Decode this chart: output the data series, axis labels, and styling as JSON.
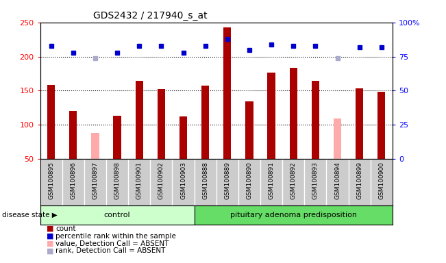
{
  "title": "GDS2432 / 217940_s_at",
  "samples": [
    "GSM100895",
    "GSM100896",
    "GSM100897",
    "GSM100898",
    "GSM100901",
    "GSM100902",
    "GSM100903",
    "GSM100888",
    "GSM100889",
    "GSM100890",
    "GSM100891",
    "GSM100892",
    "GSM100893",
    "GSM100894",
    "GSM100899",
    "GSM100900"
  ],
  "count_values": [
    158,
    120,
    null,
    113,
    165,
    152,
    112,
    157,
    243,
    134,
    177,
    184,
    165,
    null,
    153,
    148
  ],
  "absent_value_values": [
    null,
    null,
    88,
    null,
    null,
    null,
    null,
    null,
    null,
    null,
    null,
    null,
    null,
    109,
    null,
    null
  ],
  "percentile_rank_pct": [
    83,
    78,
    null,
    78,
    83,
    83,
    78,
    83,
    88,
    80,
    84,
    83,
    83,
    null,
    82,
    82
  ],
  "absent_rank_pct": [
    null,
    null,
    74,
    null,
    null,
    null,
    null,
    null,
    null,
    null,
    null,
    null,
    null,
    74,
    null,
    null
  ],
  "group_labels": [
    "control",
    "pituitary adenoma predisposition"
  ],
  "control_count": 7,
  "total_count": 16,
  "disease_state_label": "disease state",
  "ylim_left": [
    50,
    250
  ],
  "ylim_right": [
    0,
    100
  ],
  "yticks_left": [
    50,
    100,
    150,
    200,
    250
  ],
  "yticks_right": [
    0,
    25,
    50,
    75,
    100
  ],
  "ytick_labels_right": [
    "0",
    "25",
    "50",
    "75",
    "100%"
  ],
  "bar_color": "#aa0000",
  "absent_bar_color": "#ffaaaa",
  "dot_color": "#0000cc",
  "absent_dot_color": "#aaaacc",
  "sample_bg_color": "#cccccc",
  "sample_sep_color": "#999999",
  "control_bg": "#ccffcc",
  "adenoma_bg": "#66dd66",
  "legend_items": [
    {
      "label": "count",
      "color": "#aa0000"
    },
    {
      "label": "percentile rank within the sample",
      "color": "#0000cc"
    },
    {
      "label": "value, Detection Call = ABSENT",
      "color": "#ffaaaa"
    },
    {
      "label": "rank, Detection Call = ABSENT",
      "color": "#aaaacc"
    }
  ]
}
